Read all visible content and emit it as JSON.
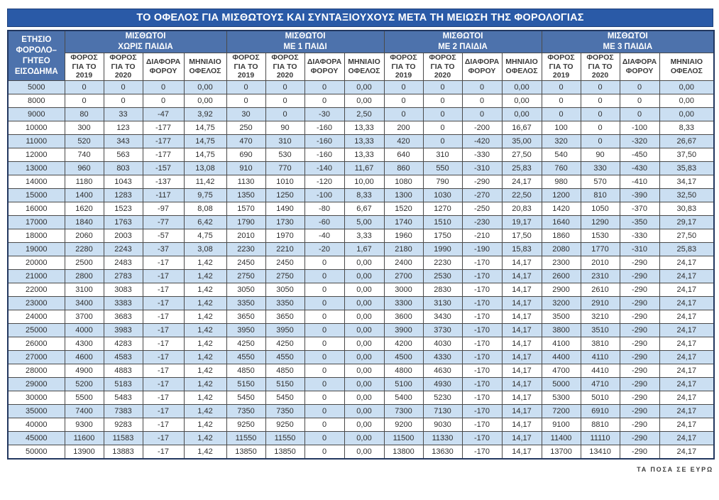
{
  "page": {
    "title": "ΤΟ ΟΦΕΛΟΣ ΓΙΑ ΜΙΣΘΩΤΟΥΣ ΚΑΙ ΣΥΝΤΑΞΙΟΥΧΟΥΣ ΜΕΤΑ ΤΗ ΜΕΙΩΣΗ ΤΗΣ ΦΟΡΟΛΟΓΙΑΣ",
    "footer_note": "ΤΑ ΠΟΣΑ ΣΕ ΕΥΡΩ"
  },
  "colors": {
    "title_bar": "#2a5aa7",
    "header_blue": "#4d72ac",
    "row_alt_blue": "#cbdff2",
    "row_white": "#ffffff",
    "grid": "#4a4a4a",
    "outer_border": "#22375f"
  },
  "table": {
    "income_header": "ΕΤΗΣΙΟ\nΦΟΡΟΛΟ–\nΓΗΤΕΟ\nΕΙΣΟΔΗΜΑ",
    "groups": [
      "ΜΙΣΘΩΤΟΙ\nΧΩΡΙΣ ΠΑΙΔΙΑ",
      "ΜΙΣΘΩΤΟΙ\nΜΕ 1 ΠΑΙΔΙ",
      "ΜΙΣΘΩΤΟΙ\nΜΕ 2 ΠΑΙΔΙΑ",
      "ΜΙΣΘΩΤΟΙ\nΜΕ 3 ΠΑΙΔΙΑ"
    ],
    "sub_headers": [
      "ΦΟΡΟΣ\nΓΙΑ ΤΟ\n2019",
      "ΦΟΡΟΣ\nΓΙΑ ΤΟ\n2020",
      "ΔΙΑΦΟΡΑ\nΦΟΡΟΥ",
      "ΜΗΝΙΑΙΟ\nΟΦΕΛΟΣ"
    ]
  },
  "chart_data": {
    "type": "table",
    "title": "ΤΟ ΟΦΕΛΟΣ ΓΙΑ ΜΙΣΘΩΤΟΥΣ ΚΑΙ ΣΥΝΤΑΞΙΟΥΧΟΥΣ ΜΕΤΑ ΤΗ ΜΕΙΩΣΗ ΤΗΣ ΦΟΡΟΛΟΓΙΑΣ",
    "units_note": "ΤΑ ΠΟΣΑ ΣΕ ΕΥΡΩ",
    "income_column": "ΕΤΗΣΙΟ ΦΟΡΟΛΟΓΗΤΕΟ ΕΙΣΟΔΗΜΑ",
    "column_groups": [
      "ΜΙΣΘΩΤΟΙ ΧΩΡΙΣ ΠΑΙΔΙΑ",
      "ΜΙΣΘΩΤΟΙ ΜΕ 1 ΠΑΙΔΙ",
      "ΜΙΣΘΩΤΟΙ ΜΕ 2 ΠΑΙΔΙΑ",
      "ΜΙΣΘΩΤΟΙ ΜΕ 3 ΠΑΙΔΙΑ"
    ],
    "columns_per_group": [
      "ΦΟΡΟΣ ΓΙΑ ΤΟ 2019",
      "ΦΟΡΟΣ ΓΙΑ ΤΟ 2020",
      "ΔΙΑΦΟΡΑ ΦΟΡΟΥ",
      "ΜΗΝΙΑΙΟ ΟΦΕΛΟΣ"
    ],
    "rows": [
      [
        5000,
        0,
        0,
        0,
        "0,00",
        0,
        0,
        0,
        "0,00",
        0,
        0,
        0,
        "0,00",
        0,
        0,
        0,
        "0,00"
      ],
      [
        8000,
        0,
        0,
        0,
        "0,00",
        0,
        0,
        0,
        "0,00",
        0,
        0,
        0,
        "0,00",
        0,
        0,
        0,
        "0,00"
      ],
      [
        9000,
        80,
        33,
        -47,
        "3,92",
        30,
        0,
        -30,
        "2,50",
        0,
        0,
        0,
        "0,00",
        0,
        0,
        0,
        "0,00"
      ],
      [
        10000,
        300,
        123,
        -177,
        "14,75",
        250,
        90,
        -160,
        "13,33",
        200,
        0,
        -200,
        "16,67",
        100,
        0,
        -100,
        "8,33"
      ],
      [
        11000,
        520,
        343,
        -177,
        "14,75",
        470,
        310,
        -160,
        "13,33",
        420,
        0,
        -420,
        "35,00",
        320,
        0,
        -320,
        "26,67"
      ],
      [
        12000,
        740,
        563,
        -177,
        "14,75",
        690,
        530,
        -160,
        "13,33",
        640,
        310,
        -330,
        "27,50",
        540,
        90,
        -450,
        "37,50"
      ],
      [
        13000,
        960,
        803,
        -157,
        "13,08",
        910,
        770,
        -140,
        "11,67",
        860,
        550,
        -310,
        "25,83",
        760,
        330,
        -430,
        "35,83"
      ],
      [
        14000,
        1180,
        1043,
        -137,
        "11,42",
        1130,
        1010,
        -120,
        "10,00",
        1080,
        790,
        -290,
        "24,17",
        980,
        570,
        -410,
        "34,17"
      ],
      [
        15000,
        1400,
        1283,
        -117,
        "9,75",
        1350,
        1250,
        -100,
        "8,33",
        1300,
        1030,
        -270,
        "22,50",
        1200,
        810,
        -390,
        "32,50"
      ],
      [
        16000,
        1620,
        1523,
        -97,
        "8,08",
        1570,
        1490,
        -80,
        "6,67",
        1520,
        1270,
        -250,
        "20,83",
        1420,
        1050,
        -370,
        "30,83"
      ],
      [
        17000,
        1840,
        1763,
        -77,
        "6,42",
        1790,
        1730,
        -60,
        "5,00",
        1740,
        1510,
        -230,
        "19,17",
        1640,
        1290,
        -350,
        "29,17"
      ],
      [
        18000,
        2060,
        2003,
        -57,
        "4,75",
        2010,
        1970,
        -40,
        "3,33",
        1960,
        1750,
        -210,
        "17,50",
        1860,
        1530,
        -330,
        "27,50"
      ],
      [
        19000,
        2280,
        2243,
        -37,
        "3,08",
        2230,
        2210,
        -20,
        "1,67",
        2180,
        1990,
        -190,
        "15,83",
        2080,
        1770,
        -310,
        "25,83"
      ],
      [
        20000,
        2500,
        2483,
        -17,
        "1,42",
        2450,
        2450,
        0,
        "0,00",
        2400,
        2230,
        -170,
        "14,17",
        2300,
        2010,
        -290,
        "24,17"
      ],
      [
        21000,
        2800,
        2783,
        -17,
        "1,42",
        2750,
        2750,
        0,
        "0,00",
        2700,
        2530,
        -170,
        "14,17",
        2600,
        2310,
        -290,
        "24,17"
      ],
      [
        22000,
        3100,
        3083,
        -17,
        "1,42",
        3050,
        3050,
        0,
        "0,00",
        3000,
        2830,
        -170,
        "14,17",
        2900,
        2610,
        -290,
        "24,17"
      ],
      [
        23000,
        3400,
        3383,
        -17,
        "1,42",
        3350,
        3350,
        0,
        "0,00",
        3300,
        3130,
        -170,
        "14,17",
        3200,
        2910,
        -290,
        "24,17"
      ],
      [
        24000,
        3700,
        3683,
        -17,
        "1,42",
        3650,
        3650,
        0,
        "0,00",
        3600,
        3430,
        -170,
        "14,17",
        3500,
        3210,
        -290,
        "24,17"
      ],
      [
        25000,
        4000,
        3983,
        -17,
        "1,42",
        3950,
        3950,
        0,
        "0,00",
        3900,
        3730,
        -170,
        "14,17",
        3800,
        3510,
        -290,
        "24,17"
      ],
      [
        26000,
        4300,
        4283,
        -17,
        "1,42",
        4250,
        4250,
        0,
        "0,00",
        4200,
        4030,
        -170,
        "14,17",
        4100,
        3810,
        -290,
        "24,17"
      ],
      [
        27000,
        4600,
        4583,
        -17,
        "1,42",
        4550,
        4550,
        0,
        "0,00",
        4500,
        4330,
        -170,
        "14,17",
        4400,
        4110,
        -290,
        "24,17"
      ],
      [
        28000,
        4900,
        4883,
        -17,
        "1,42",
        4850,
        4850,
        0,
        "0,00",
        4800,
        4630,
        -170,
        "14,17",
        4700,
        4410,
        -290,
        "24,17"
      ],
      [
        29000,
        5200,
        5183,
        -17,
        "1,42",
        5150,
        5150,
        0,
        "0,00",
        5100,
        4930,
        -170,
        "14,17",
        5000,
        4710,
        -290,
        "24,17"
      ],
      [
        30000,
        5500,
        5483,
        -17,
        "1,42",
        5450,
        5450,
        0,
        "0,00",
        5400,
        5230,
        -170,
        "14,17",
        5300,
        5010,
        -290,
        "24,17"
      ],
      [
        35000,
        7400,
        7383,
        -17,
        "1,42",
        7350,
        7350,
        0,
        "0,00",
        7300,
        7130,
        -170,
        "14,17",
        7200,
        6910,
        -290,
        "24,17"
      ],
      [
        40000,
        9300,
        9283,
        -17,
        "1,42",
        9250,
        9250,
        0,
        "0,00",
        9200,
        9030,
        -170,
        "14,17",
        9100,
        8810,
        -290,
        "24,17"
      ],
      [
        45000,
        11600,
        11583,
        -17,
        "1,42",
        11550,
        11550,
        0,
        "0,00",
        11500,
        11330,
        -170,
        "14,17",
        11400,
        11110,
        -290,
        "24,17"
      ],
      [
        50000,
        13900,
        13883,
        -17,
        "1,42",
        13850,
        13850,
        0,
        "0,00",
        13800,
        13630,
        -170,
        "14,17",
        13700,
        13410,
        -290,
        "24,17"
      ]
    ]
  }
}
